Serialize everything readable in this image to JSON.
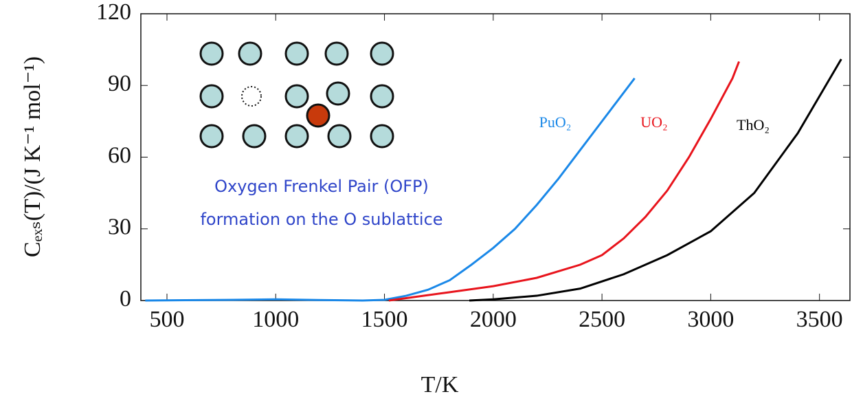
{
  "chart_data": {
    "type": "line",
    "x_label": "T/K",
    "y_label": "Cₑₓₛ(T)/(J K⁻¹ mol⁻¹)",
    "annotations": [
      "Oxygen Frenkel Pair (OFP)",
      "formation on the O sublattice"
    ],
    "xlim": [
      380,
      3640
    ],
    "xticks": [
      500,
      1000,
      1500,
      2000,
      2500,
      3000,
      3500
    ],
    "ylim": [
      0,
      120
    ],
    "yticks": [
      0,
      30,
      60,
      90,
      120
    ],
    "series": [
      {
        "name": "PuO₂",
        "color": "#1a88e8",
        "x": [
          400,
          800,
          1000,
          1200,
          1400,
          1500,
          1600,
          1700,
          1800,
          1900,
          2000,
          2100,
          2200,
          2300,
          2400,
          2500,
          2600,
          2650
        ],
        "values": [
          0,
          0.3,
          0.5,
          0.2,
          0,
          0.3,
          2,
          4.5,
          8.5,
          15,
          22,
          30,
          40,
          51,
          63,
          75,
          87,
          93
        ]
      },
      {
        "name": "UO₂",
        "color": "#e8141c",
        "x": [
          1520,
          1600,
          1800,
          2000,
          2200,
          2400,
          2500,
          2600,
          2700,
          2800,
          2900,
          3000,
          3100,
          3130
        ],
        "values": [
          0,
          1,
          3.5,
          6,
          9.5,
          15,
          19,
          26,
          35,
          46,
          60,
          76,
          93,
          100
        ]
      },
      {
        "name": "ThO₂",
        "color": "#000000",
        "x": [
          1890,
          2000,
          2200,
          2400,
          2600,
          2800,
          3000,
          3200,
          3400,
          3600
        ],
        "values": [
          0,
          0.5,
          2,
          5,
          11,
          19,
          29,
          45,
          70,
          101
        ]
      }
    ]
  }
}
